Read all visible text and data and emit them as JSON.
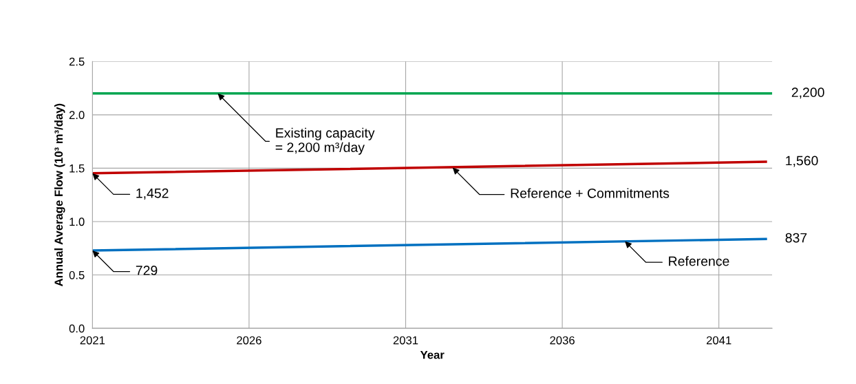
{
  "chart_data": {
    "type": "line",
    "xlabel": "Year",
    "ylabel": "Annual Average Flow (10³ m³/day)",
    "xlim": [
      2021,
      2042.7
    ],
    "xticks": [
      2021,
      2026,
      2031,
      2036,
      2041
    ],
    "ylim": [
      0,
      2.5
    ],
    "yticks": [
      {
        "value": 0,
        "label": "0.0"
      },
      {
        "value": 0.5,
        "label": "0.5"
      },
      {
        "value": 1.0,
        "label": "1.0"
      },
      {
        "value": 1.5,
        "label": "1.5"
      },
      {
        "value": 2.0,
        "label": "2.0"
      },
      {
        "value": 2.5,
        "label": "2.5"
      }
    ],
    "grid": true,
    "legend": false,
    "marker": "none",
    "line_style": "solid",
    "series": [
      {
        "color": "#00a550",
        "x": [
          2021,
          2042.7
        ],
        "values": [
          2.2,
          2.2
        ]
      },
      {
        "color": "#c00000",
        "x": [
          2021,
          2042.5
        ],
        "values": [
          1.452,
          1.56
        ]
      },
      {
        "color": "#0070c0",
        "x": [
          2021,
          2042.5
        ],
        "values": [
          0.729,
          0.837
        ]
      }
    ],
    "annotations": [
      {
        "text": "Existing capacity\n= 2,200 m³/day",
        "x": 2025,
        "y": 2.2
      },
      {
        "text": "Reference + Commitments",
        "x": 2032.5,
        "y": 1.505
      },
      {
        "text": "Reference",
        "x": 2038,
        "y": 0.815
      },
      {
        "text": "1,452",
        "x": 2021,
        "y": 1.452
      },
      {
        "text": "729",
        "x": 2021,
        "y": 0.729
      },
      {
        "text": "2,200",
        "x": 2042.7,
        "y": 2.2
      },
      {
        "text": "1,560",
        "x": 2042.5,
        "y": 1.56
      },
      {
        "text": "837",
        "x": 2042.5,
        "y": 0.837
      }
    ]
  }
}
